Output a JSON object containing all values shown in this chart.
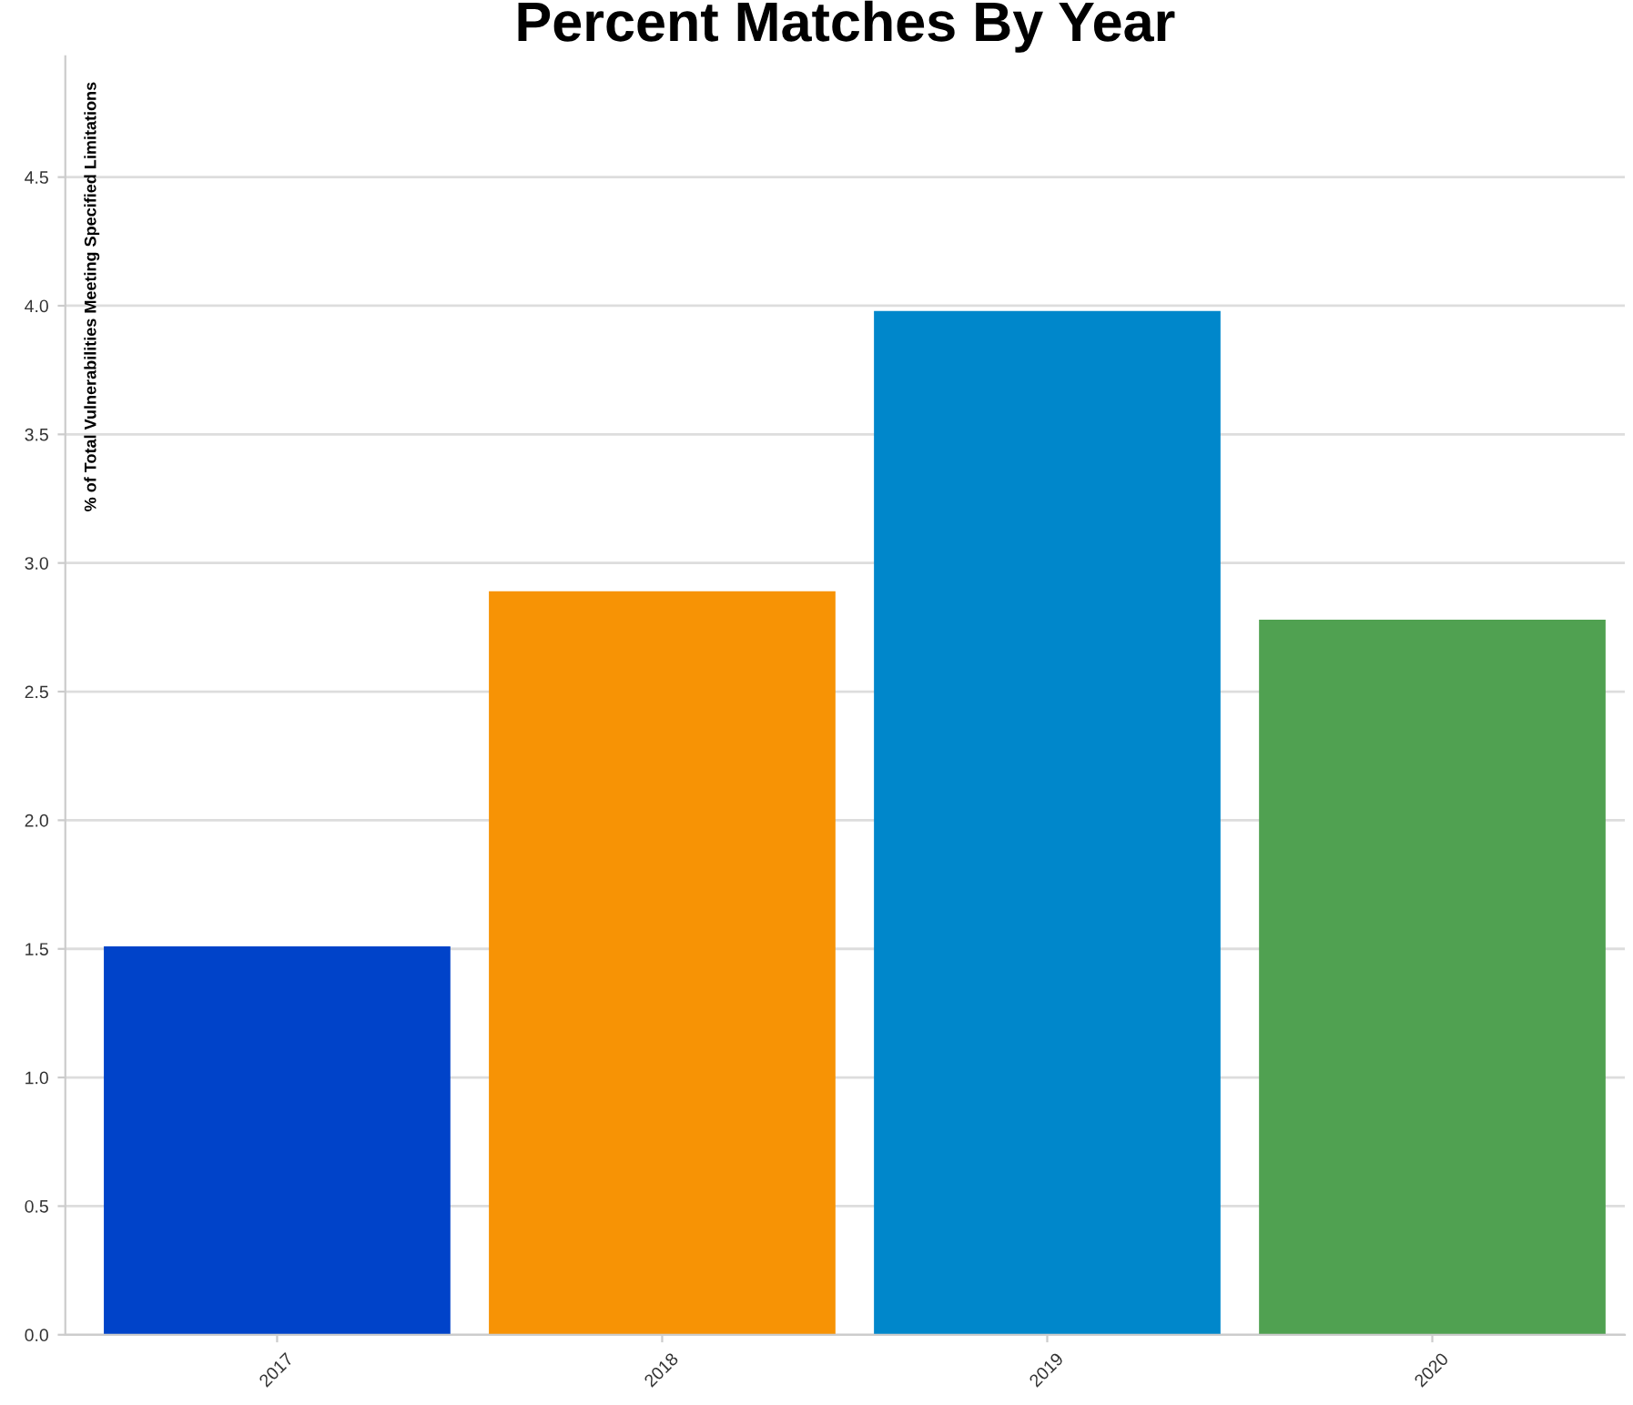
{
  "chart_data": {
    "type": "bar",
    "title": "Percent Matches By Year",
    "ylabel": "% of Total Vulnerabilities Meeting Specified Limitations",
    "categories": [
      "2017",
      "2018",
      "2019",
      "2020"
    ],
    "values": [
      1.51,
      2.89,
      3.98,
      2.78
    ],
    "colors": [
      "#0043c9",
      "#f79305",
      "#0087cb",
      "#50a151"
    ],
    "ylim": [
      0,
      4.97
    ],
    "yticks": [
      {
        "value": 0,
        "label": "0.0"
      },
      {
        "value": 0.5,
        "label": "0.5"
      },
      {
        "value": 1,
        "label": "1.0"
      },
      {
        "value": 1.5,
        "label": "1.5"
      },
      {
        "value": 2,
        "label": "2.0"
      },
      {
        "value": 2.5,
        "label": "2.5"
      },
      {
        "value": 3,
        "label": "3.0"
      },
      {
        "value": 3.5,
        "label": "3.5"
      },
      {
        "value": 4,
        "label": "4.0"
      },
      {
        "value": 4.5,
        "label": "4.5"
      }
    ],
    "grid": "y"
  }
}
